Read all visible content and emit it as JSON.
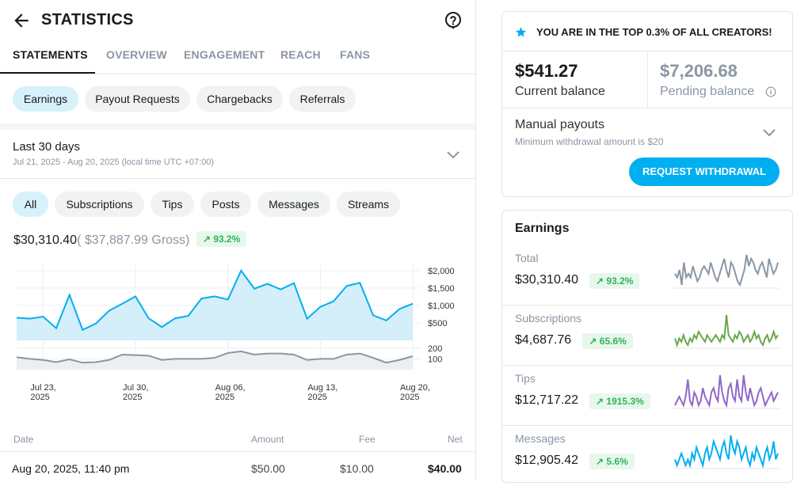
{
  "header": {
    "title": "STATISTICS",
    "back_icon": "arrow-left-icon",
    "help_icon": "question-circle-icon"
  },
  "tabs": [
    {
      "label": "STATEMENTS",
      "active": true
    },
    {
      "label": "OVERVIEW"
    },
    {
      "label": "ENGAGEMENT"
    },
    {
      "label": "REACH"
    },
    {
      "label": "FANS"
    }
  ],
  "statement_types": [
    "Earnings",
    "Payout Requests",
    "Chargebacks",
    "Referrals"
  ],
  "period": {
    "label": "Last 30 days",
    "range": "Jul 21, 2025 - Aug 20, 2025 (local time UTC +07:00)"
  },
  "filters": [
    "All",
    "Subscriptions",
    "Tips",
    "Posts",
    "Messages",
    "Streams"
  ],
  "summary": {
    "net": "$30,310.40",
    "gross": "( $37,887.99 Gross)",
    "change": "93.2%"
  },
  "colors": {
    "accent": "#00aff0",
    "chip_selected": "#d7f1fb",
    "positive": "#2fb35a",
    "gray_line": "#8a96a3"
  },
  "chart_data": {
    "type": "line",
    "x_ticks": [
      {
        "label": "Jul 23,",
        "label2": "2025"
      },
      {
        "label": "Jul 30,",
        "label2": "2025"
      },
      {
        "label": "Aug 06,",
        "label2": "2025"
      },
      {
        "label": "Aug 13,",
        "label2": "2025"
      },
      {
        "label": "Aug 20,",
        "label2": "2025"
      }
    ],
    "upper": {
      "ylim": [
        0,
        2200
      ],
      "y_ticks": [
        "$2,000",
        "$1,500",
        "$1,000",
        "$500"
      ],
      "y_tick_values": [
        2000,
        1500,
        1000,
        500
      ],
      "values": [
        650,
        620,
        680,
        350,
        1300,
        300,
        480,
        850,
        1050,
        1260,
        630,
        380,
        630,
        700,
        1200,
        1260,
        1170,
        2000,
        1480,
        1620,
        1460,
        1640,
        620,
        960,
        1120,
        1560,
        1650,
        720,
        570,
        900,
        1050
      ]
    },
    "lower": {
      "ylim": [
        0,
        250
      ],
      "y_ticks": [
        "200",
        "100"
      ],
      "y_tick_values": [
        200,
        100
      ],
      "values": [
        115,
        100,
        90,
        70,
        95,
        65,
        70,
        90,
        140,
        135,
        130,
        90,
        100,
        100,
        100,
        110,
        155,
        170,
        140,
        150,
        150,
        140,
        90,
        100,
        100,
        140,
        150,
        110,
        65,
        90,
        125
      ]
    }
  },
  "table": {
    "headers": [
      "Date",
      "Amount",
      "Fee",
      "Net"
    ],
    "rows": [
      {
        "date": "Aug 20, 2025, 11:40 pm",
        "amount": "$50.00",
        "fee": "$10.00",
        "net": "$40.00"
      }
    ]
  },
  "top_creators": "YOU ARE IN THE TOP 0.3% OF ALL CREATORS!",
  "balance": {
    "current": "$541.27",
    "current_label": "Current balance",
    "pending": "$7,206.68",
    "pending_label": "Pending balance"
  },
  "payouts": {
    "title": "Manual payouts",
    "min": "Minimum withdrawal amount is $20",
    "button": "REQUEST WITHDRAWAL"
  },
  "earnings": {
    "title": "Earnings",
    "rows": [
      {
        "label": "Total",
        "value": "$30,310.40",
        "change": "93.2%",
        "color": "#8a96a3",
        "spark": [
          3,
          2,
          4,
          0,
          6,
          2,
          3,
          2,
          5,
          3,
          1,
          2,
          4,
          5,
          4,
          3,
          6,
          4,
          2,
          1,
          3,
          5,
          7,
          4,
          2,
          6,
          5,
          3,
          1,
          0,
          2,
          4,
          8,
          5,
          7,
          6,
          4,
          3,
          5,
          6,
          4,
          2,
          7,
          5,
          3,
          4,
          6
        ]
      },
      {
        "label": "Subscriptions",
        "value": "$4,687.76",
        "change": "65.6%",
        "color": "#6aa84f",
        "spark": [
          4,
          2,
          4,
          3,
          5,
          3,
          2,
          4,
          3,
          5,
          4,
          6,
          5,
          4,
          3,
          5,
          4,
          3,
          4,
          5,
          4,
          3,
          5,
          4,
          11,
          5,
          4,
          3,
          5,
          4,
          6,
          5,
          3,
          4,
          5,
          3,
          4,
          6,
          4,
          5,
          3,
          2,
          4,
          5,
          3,
          4,
          6,
          4,
          5
        ]
      },
      {
        "label": "Tips",
        "value": "$12,717.22",
        "change": "1915.3%",
        "color": "#9068c9",
        "spark": [
          2,
          3,
          4,
          3,
          2,
          4,
          8,
          3,
          2,
          5,
          4,
          2,
          3,
          6,
          4,
          3,
          2,
          5,
          6,
          4,
          3,
          9,
          5,
          3,
          2,
          6,
          7,
          4,
          3,
          8,
          4,
          3,
          9,
          5,
          3,
          6,
          4,
          2,
          3,
          5,
          6,
          4,
          2,
          3,
          4,
          5,
          3,
          4,
          5
        ]
      },
      {
        "label": "Messages",
        "value": "$12,905.42",
        "change": "5.6%",
        "color": "#00aff0",
        "spark": [
          3,
          2,
          3,
          4,
          3,
          2,
          3,
          2,
          4,
          3,
          5,
          4,
          3,
          2,
          4,
          5,
          3,
          4,
          6,
          5,
          4,
          3,
          5,
          6,
          4,
          3,
          7,
          5,
          4,
          6,
          5,
          3,
          4,
          5,
          3,
          2,
          4,
          3,
          5,
          4,
          3,
          2,
          4,
          5,
          3,
          4,
          6,
          3,
          4
        ]
      }
    ]
  }
}
